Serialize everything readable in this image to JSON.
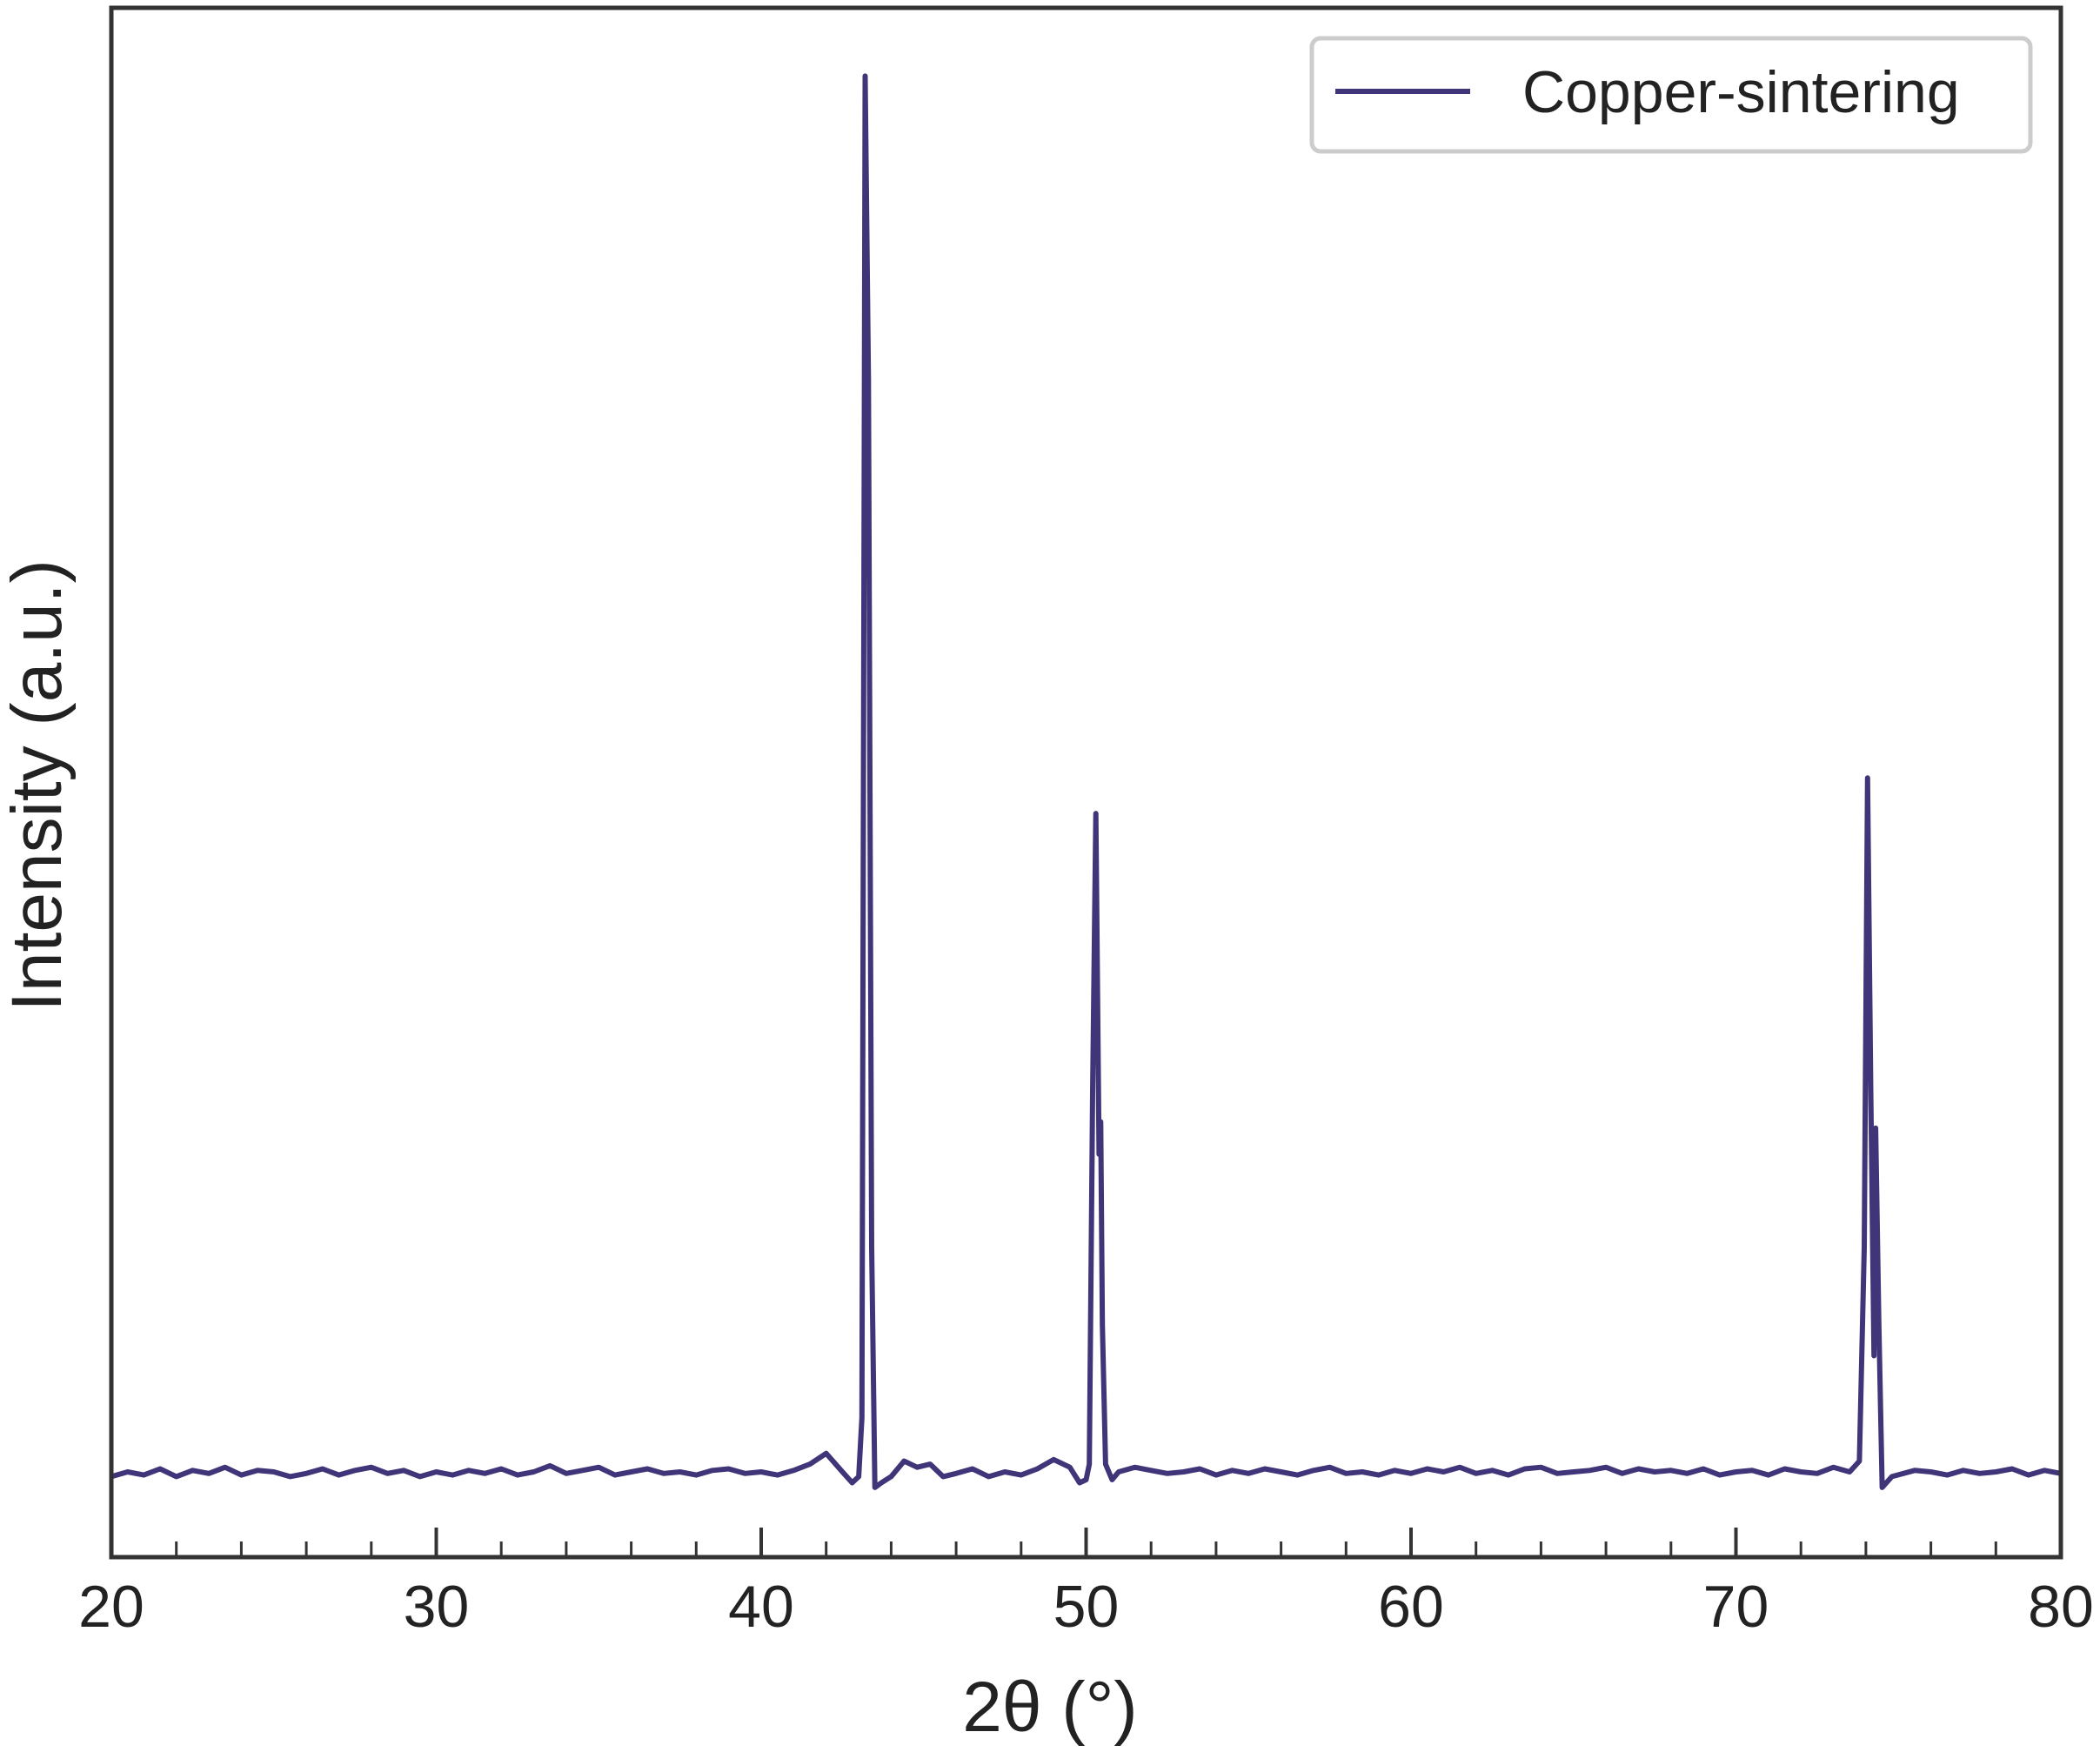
{
  "chart_data": {
    "type": "line",
    "xlabel": "2θ (°)",
    "ylabel": "Intensity (a.u.)",
    "x": [
      20,
      20.5,
      21,
      21.5,
      22,
      22.5,
      23,
      23.5,
      24,
      24.5,
      25,
      25.5,
      26,
      26.5,
      27,
      27.5,
      28,
      28.5,
      29,
      29.5,
      30,
      30.5,
      31,
      31.5,
      32,
      32.5,
      33,
      33.5,
      34,
      34.5,
      35,
      35.5,
      36,
      36.5,
      37,
      37.5,
      38,
      38.5,
      39,
      39.5,
      40,
      40.5,
      41,
      41.5,
      42,
      42.5,
      42.8,
      43,
      43.1,
      43.2,
      43.3,
      43.4,
      43.5,
      43.7,
      44,
      44.4,
      44.8,
      45.2,
      45.6,
      46,
      46.5,
      47,
      47.5,
      48,
      48.5,
      49,
      49.5,
      49.8,
      50,
      50.1,
      50.2,
      50.3,
      50.4,
      50.45,
      50.5,
      50.6,
      50.8,
      51,
      51.5,
      52,
      52.5,
      53,
      53.5,
      54,
      54.5,
      55,
      55.5,
      56,
      56.5,
      57,
      57.5,
      58,
      58.5,
      59,
      59.5,
      60,
      60.5,
      61,
      61.5,
      62,
      62.5,
      63,
      63.5,
      64,
      64.5,
      65,
      65.5,
      66,
      66.5,
      67,
      67.5,
      68,
      68.5,
      69,
      69.5,
      70,
      70.5,
      71,
      71.5,
      72,
      72.5,
      73,
      73.5,
      73.8,
      73.95,
      74.05,
      74.15,
      74.25,
      74.3,
      74.4,
      74.5,
      74.8,
      75.5,
      76,
      76.5,
      77,
      77.5,
      78,
      78.5,
      79,
      79.5,
      80
    ],
    "series": [
      {
        "name": "Copper-sintering",
        "color": "#3f3578",
        "values": [
          52,
          55,
          53,
          57,
          52,
          56,
          54,
          58,
          53,
          56,
          55,
          52,
          54,
          57,
          53,
          56,
          58,
          54,
          56,
          52,
          55,
          53,
          56,
          54,
          57,
          53,
          55,
          59,
          54,
          56,
          58,
          53,
          55,
          57,
          54,
          55,
          53,
          56,
          57,
          54,
          55,
          53,
          56,
          60,
          67,
          55,
          48,
          52,
          90,
          956,
          760,
          200,
          45,
          48,
          52,
          62,
          58,
          60,
          52,
          54,
          57,
          52,
          55,
          53,
          57,
          63,
          58,
          48,
          50,
          60,
          300,
          480,
          260,
          281,
          150,
          60,
          50,
          55,
          58,
          56,
          54,
          55,
          57,
          53,
          56,
          54,
          57,
          55,
          53,
          56,
          58,
          54,
          55,
          53,
          56,
          54,
          57,
          55,
          58,
          54,
          56,
          53,
          57,
          58,
          54,
          55,
          56,
          58,
          54,
          57,
          55,
          56,
          54,
          57,
          53,
          55,
          56,
          53,
          57,
          55,
          54,
          58,
          55,
          62,
          200,
          503,
          300,
          130,
          277,
          150,
          45,
          52,
          56,
          55,
          53,
          56,
          54,
          55,
          57,
          53,
          56,
          54
        ]
      }
    ],
    "xlim": [
      20,
      80
    ],
    "xticks": [
      20,
      30,
      40,
      50,
      60,
      70,
      80
    ],
    "xminorticks": [
      22,
      24,
      26,
      28,
      32,
      34,
      36,
      38,
      42,
      44,
      46,
      48,
      52,
      54,
      56,
      58,
      62,
      64,
      66,
      68,
      72,
      74,
      76,
      78
    ],
    "ylim": [
      0,
      1000
    ],
    "legend": "upper right"
  }
}
